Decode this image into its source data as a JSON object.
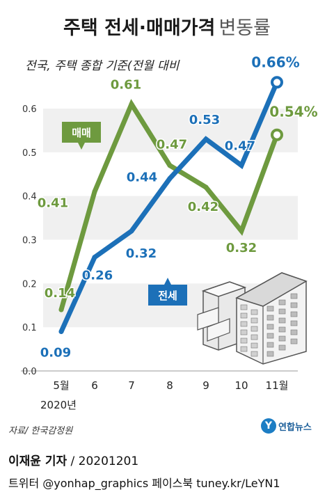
{
  "header": {
    "title_bold": "주택 전세·매매가격",
    "title_light": "변동률",
    "subtitle": "전국, 주택 종합 기준(전월 대비"
  },
  "x_axis": {
    "year_label": "2020년"
  },
  "footer": {
    "source": "자료/ 한국감정원",
    "logo_text": "연합뉴스",
    "reporter": "이재윤 기자",
    "date": " / 20201201",
    "twitter": "트위터 @yonhap_graphics  페이스북 tuney.kr/LeYN1"
  },
  "colors": {
    "sale": "#6e9a3f",
    "rent": "#1c70b8",
    "band": "#f0f0f0"
  },
  "chart_data": {
    "type": "line",
    "title": "주택 전세·매매가격 변동률",
    "subtitle": "전국, 주택 종합 기준(전월 대비",
    "categories": [
      "5월",
      "6",
      "7",
      "8",
      "9",
      "10",
      "11월"
    ],
    "ylim": [
      0,
      0.6
    ],
    "yticks": [
      "0.0",
      "0.1",
      "0.2",
      "0.3",
      "0.4",
      "0.5",
      "0.6"
    ],
    "grid": "alternating horizontal bands",
    "series": [
      {
        "name": "매매",
        "color": "#6e9a3f",
        "values": [
          0.14,
          0.41,
          0.61,
          0.47,
          0.42,
          0.32,
          0.54
        ],
        "labels": [
          "0.14",
          "0.41",
          "0.61",
          "0.47",
          "0.42",
          "0.32",
          "0.54%"
        ]
      },
      {
        "name": "전세",
        "color": "#1c70b8",
        "values": [
          0.09,
          0.26,
          0.32,
          0.44,
          0.53,
          0.47,
          0.66
        ],
        "labels": [
          "0.09",
          "0.26",
          "0.32",
          "0.44",
          "0.53",
          "0.47",
          "0.66%"
        ]
      }
    ]
  }
}
